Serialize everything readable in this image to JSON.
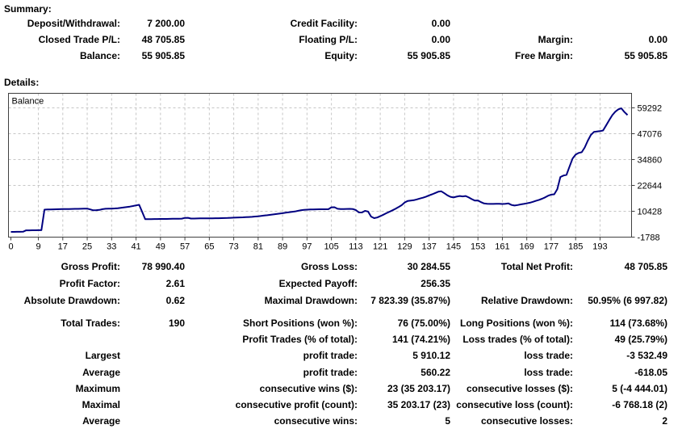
{
  "summary": {
    "heading": "Summary:",
    "rows": [
      [
        "Deposit/Withdrawal:",
        "7 200.00",
        "Credit Facility:",
        "0.00",
        "",
        ""
      ],
      [
        "Closed Trade P/L:",
        "48 705.85",
        "Floating P/L:",
        "0.00",
        "Margin:",
        "0.00"
      ],
      [
        "Balance:",
        "55 905.85",
        "Equity:",
        "55 905.85",
        "Free Margin:",
        "55 905.85"
      ]
    ]
  },
  "details": {
    "heading": "Details:",
    "block1": [
      [
        "Gross Profit:",
        "78 990.40",
        "Gross Loss:",
        "30 284.55",
        "Total Net Profit:",
        "48 705.85"
      ],
      [
        "Profit Factor:",
        "2.61",
        "Expected Payoff:",
        "256.35",
        "",
        ""
      ],
      [
        "Absolute Drawdown:",
        "0.62",
        "Maximal Drawdown:",
        "7 823.39 (35.87%)",
        "Relative Drawdown:",
        "50.95% (6 997.82)"
      ]
    ],
    "block2": [
      [
        "Total Trades:",
        "190",
        "Short Positions (won %):",
        "76 (75.00%)",
        "Long Positions (won %):",
        "114 (73.68%)"
      ],
      [
        "",
        "",
        "Profit Trades (% of total):",
        "141 (74.21%)",
        "Loss trades (% of total):",
        "49 (25.79%)"
      ],
      [
        "Largest",
        "",
        "profit trade:",
        "5 910.12",
        "loss trade:",
        "-3 532.49"
      ],
      [
        "Average",
        "",
        "profit trade:",
        "560.22",
        "loss trade:",
        "-618.05"
      ],
      [
        "Maximum",
        "",
        "consecutive wins ($):",
        "23 (35 203.17)",
        "consecutive losses ($):",
        "5 (-4 444.01)"
      ],
      [
        "Maximal",
        "",
        "consecutive profit (count):",
        "35 203.17 (23)",
        "consecutive loss (count):",
        "-6 768.18 (2)"
      ],
      [
        "Average",
        "",
        "consecutive wins:",
        "5",
        "consecutive losses:",
        "2"
      ]
    ]
  },
  "chart_data": {
    "type": "line",
    "title": "Balance",
    "xlabel": "",
    "ylabel": "",
    "legend_position": "top-left-inside",
    "grid": true,
    "colors": {
      "line": "#000080",
      "grid": "#c6c6c6",
      "border": "#404040",
      "background": "#ffffff"
    },
    "x_ticks": [
      0,
      9,
      17,
      25,
      33,
      41,
      49,
      57,
      65,
      73,
      81,
      89,
      97,
      105,
      113,
      121,
      129,
      137,
      145,
      153,
      161,
      169,
      177,
      185,
      193
    ],
    "y_ticks": [
      59292,
      47076,
      34860,
      22644,
      10428,
      -1788
    ],
    "ylim": [
      -1788,
      66160
    ],
    "units_per_pixel": 381.75,
    "series": [
      {
        "name": "Balance",
        "values": [
          700,
          700,
          720,
          740,
          760,
          1400,
          1420,
          1440,
          1460,
          1480,
          1500,
          11200,
          11250,
          11300,
          11340,
          11380,
          11420,
          11450,
          11480,
          11510,
          11540,
          11560,
          11590,
          11610,
          11640,
          11700,
          11300,
          10900,
          10950,
          11080,
          11420,
          11600,
          11650,
          11700,
          11760,
          11860,
          12060,
          12260,
          12460,
          12660,
          12910,
          13200,
          13500,
          10200,
          6700,
          6720,
          6730,
          6750,
          6770,
          6790,
          6800,
          6820,
          6840,
          6860,
          6880,
          6900,
          6950,
          7300,
          7340,
          7000,
          7010,
          7030,
          7050,
          7070,
          7090,
          7100,
          7120,
          7140,
          7160,
          7180,
          7210,
          7270,
          7340,
          7410,
          7470,
          7530,
          7580,
          7640,
          7710,
          7810,
          7930,
          8070,
          8230,
          8410,
          8570,
          8730,
          8930,
          9130,
          9330,
          9530,
          9730,
          9930,
          10130,
          10330,
          10630,
          10920,
          11100,
          11200,
          11280,
          11310,
          11340,
          11370,
          11390,
          11400,
          11370,
          12300,
          12350,
          11600,
          11450,
          11480,
          11520,
          11560,
          11500,
          11000,
          9900,
          9850,
          10600,
          10300,
          7900,
          7200,
          7500,
          8100,
          8800,
          9500,
          10200,
          10900,
          11600,
          12400,
          13300,
          14600,
          15300,
          15500,
          15650,
          16050,
          16450,
          16850,
          17350,
          17950,
          18450,
          19050,
          19650,
          19850,
          18950,
          17950,
          17250,
          16950,
          17350,
          17650,
          17450,
          17650,
          16950,
          16150,
          15450,
          15550,
          14750,
          14150,
          13980,
          13920,
          13900,
          13950,
          13960,
          13860,
          13960,
          14120,
          13420,
          13120,
          13360,
          13660,
          13910,
          14160,
          14460,
          14910,
          15360,
          15810,
          16360,
          17010,
          17810,
          18310,
          18460,
          20900,
          26600,
          27300,
          27650,
          31500,
          35300,
          37200,
          38000,
          38350,
          40600,
          43800,
          46500,
          47900,
          48100,
          48300,
          48600,
          51000,
          53500,
          55800,
          57500,
          58600,
          59050,
          57300,
          55906
        ]
      }
    ]
  }
}
